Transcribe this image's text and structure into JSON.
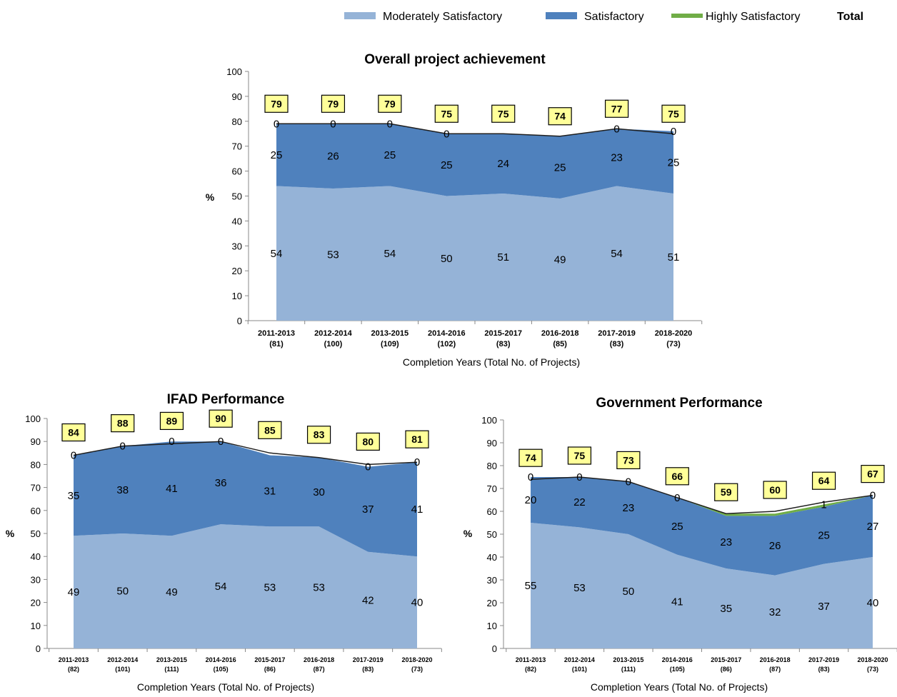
{
  "legend": {
    "items": [
      {
        "label": "Moderately Satisfactory",
        "color": "#95b3d7"
      },
      {
        "label": "Satisfactory",
        "color": "#4f81bd"
      },
      {
        "label": "Highly Satisfactory",
        "color": "#70ad47"
      }
    ],
    "total_label": "Total"
  },
  "chart_data": [
    {
      "type": "area",
      "title": "Overall project achievement",
      "ylabel": "%",
      "xlabel": "Completion Years (Total No. of Projects)",
      "ylim": [
        0,
        100
      ],
      "yticks": [
        0,
        10,
        20,
        30,
        40,
        50,
        60,
        70,
        80,
        90,
        100
      ],
      "categories": [
        "2011-2013",
        "2012-2014",
        "2013-2015",
        "2014-2016",
        "2015-2017",
        "2016-2018",
        "2017-2019",
        "2018-2020"
      ],
      "category_counts": [
        "(81)",
        "(100)",
        "(109)",
        "(102)",
        "(83)",
        "(85)",
        "(83)",
        "(73)"
      ],
      "series": [
        {
          "name": "Moderately Satisfactory",
          "values": [
            54,
            53,
            54,
            50,
            51,
            49,
            54,
            51
          ]
        },
        {
          "name": "Satisfactory",
          "values": [
            25,
            26,
            25,
            25,
            24,
            25,
            23,
            25
          ]
        },
        {
          "name": "Highly Satisfactory",
          "values": [
            0,
            0,
            0,
            0,
            0,
            0,
            0,
            0
          ]
        }
      ],
      "highly_labels": [
        "0",
        "0",
        "0",
        "0",
        "",
        "",
        "0",
        "0"
      ],
      "totals": [
        79,
        79,
        79,
        75,
        75,
        74,
        77,
        75
      ]
    },
    {
      "type": "area",
      "title": "IFAD Performance",
      "ylabel": "%",
      "xlabel": "Completion Years (Total No. of Projects)",
      "ylim": [
        0,
        100
      ],
      "yticks": [
        0,
        10,
        20,
        30,
        40,
        50,
        60,
        70,
        80,
        90,
        100
      ],
      "categories": [
        "2011-2013",
        "2012-2014",
        "2013-2015",
        "2014-2016",
        "2015-2017",
        "2016-2018",
        "2017-2019",
        "2018-2020"
      ],
      "category_counts": [
        "(82)",
        "(101)",
        "(111)",
        "(105)",
        "(86)",
        "(87)",
        "(83)",
        "(73)"
      ],
      "series": [
        {
          "name": "Moderately Satisfactory",
          "values": [
            49,
            50,
            49,
            54,
            53,
            53,
            42,
            40
          ]
        },
        {
          "name": "Satisfactory",
          "values": [
            35,
            38,
            41,
            36,
            31,
            30,
            37,
            41
          ]
        },
        {
          "name": "Highly Satisfactory",
          "values": [
            0,
            0,
            0,
            0,
            0,
            0,
            0,
            0
          ]
        }
      ],
      "highly_labels": [
        "0",
        "0",
        "0",
        "0",
        "",
        "",
        "0",
        "0"
      ],
      "totals": [
        84,
        88,
        89,
        90,
        85,
        83,
        80,
        81
      ]
    },
    {
      "type": "area",
      "title": "Government Performance",
      "ylabel": "%",
      "xlabel": "Completion Years (Total No. of Projects)",
      "ylim": [
        0,
        100
      ],
      "yticks": [
        0,
        10,
        20,
        30,
        40,
        50,
        60,
        70,
        80,
        90,
        100
      ],
      "categories": [
        "2011-2013",
        "2012-2014",
        "2013-2015",
        "2014-2016",
        "2015-2017",
        "2016-2018",
        "2017-2019",
        "2018-2020"
      ],
      "category_counts": [
        "(82)",
        "(101)",
        "(111)",
        "(105)",
        "(86)",
        "(87)",
        "(83)",
        "(73)"
      ],
      "series": [
        {
          "name": "Moderately Satisfactory",
          "values": [
            55,
            53,
            50,
            41,
            35,
            32,
            37,
            40
          ]
        },
        {
          "name": "Satisfactory",
          "values": [
            20,
            22,
            23,
            25,
            23,
            26,
            25,
            27
          ]
        },
        {
          "name": "Highly Satisfactory",
          "values": [
            0,
            0,
            0,
            0,
            1,
            1,
            1,
            0
          ]
        }
      ],
      "highly_labels": [
        "0",
        "0",
        "0",
        "0",
        "",
        "",
        "1",
        "0"
      ],
      "totals": [
        74,
        75,
        73,
        66,
        59,
        60,
        64,
        67
      ]
    }
  ]
}
